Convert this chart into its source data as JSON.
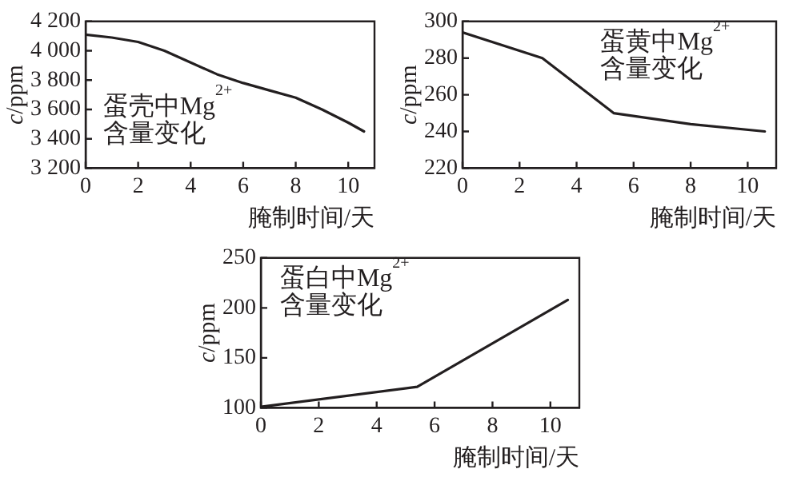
{
  "chart_data": [
    {
      "type": "line",
      "xlabel": "腌制时间/天",
      "ylabel": "c/ppm",
      "annotations": [
        "蛋壳中Mg$^{2+}$\n含量变化"
      ],
      "series": [
        {
          "color": "#231f20",
          "x": [
            0,
            1,
            2,
            3,
            4,
            5,
            6,
            7,
            8,
            9,
            10,
            10.6
          ],
          "values": [
            4110,
            4090,
            4060,
            4000,
            3920,
            3840,
            3780,
            3730,
            3680,
            3600,
            3510,
            3450
          ]
        }
      ],
      "xlim": [
        0,
        11
      ],
      "xticks": [
        0,
        2,
        4,
        6,
        8,
        10
      ],
      "ylim": [
        3200,
        4200
      ],
      "yticks": [
        {
          "value": 3200,
          "label": "3 200"
        },
        {
          "value": 3400,
          "label": "3 400"
        },
        {
          "value": 3600,
          "label": "3 600"
        },
        {
          "value": 3800,
          "label": "3 800"
        },
        {
          "value": 4000,
          "label": "4 000"
        },
        {
          "value": 4200,
          "label": "4 200"
        }
      ],
      "grid": false,
      "legend": false,
      "marker": "none",
      "line_style": "solid"
    },
    {
      "type": "line",
      "xlabel": "腌制时间/天",
      "ylabel": "c/ppm",
      "annotations": [
        "蛋黄中Mg$^{2+}$\n含量变化"
      ],
      "series": [
        {
          "color": "#231f20",
          "x": [
            0,
            2.8,
            5.3,
            8,
            10.6
          ],
          "values": [
            294,
            280,
            250,
            244,
            240
          ]
        }
      ],
      "xlim": [
        0,
        11
      ],
      "xticks": [
        0,
        2,
        4,
        6,
        8,
        10
      ],
      "ylim": [
        220,
        300
      ],
      "yticks": [
        220,
        240,
        260,
        280,
        300
      ],
      "grid": false,
      "legend": false,
      "marker": "none",
      "line_style": "solid"
    },
    {
      "type": "line",
      "xlabel": "腌制时间/天",
      "ylabel": "c/ppm",
      "annotations": [
        "蛋白中Mg$^{2+}$\n含量变化"
      ],
      "series": [
        {
          "color": "#231f20",
          "x": [
            0,
            5.4,
            10.6
          ],
          "values": [
            101,
            121,
            208
          ]
        }
      ],
      "xlim": [
        0,
        11
      ],
      "xticks": [
        0,
        2,
        4,
        6,
        8,
        10
      ],
      "ylim": [
        100,
        250
      ],
      "yticks": [
        100,
        150,
        200,
        250
      ],
      "grid": false,
      "legend": false,
      "marker": "none",
      "line_style": "solid"
    }
  ]
}
